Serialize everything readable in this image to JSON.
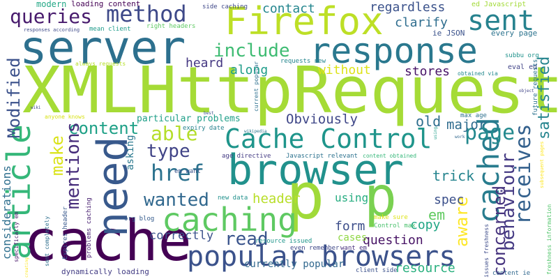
{
  "words": [
    {
      "text": "XMLHttpRequest",
      "color": "#a5db36",
      "rotate": 0
    },
    {
      "text": "browser",
      "color": "#21918c",
      "rotate": 0
    },
    {
      "text": "p",
      "color": "#a0da39",
      "rotate": 0
    },
    {
      "text": "p",
      "color": "#7ad151",
      "rotate": 0
    },
    {
      "text": "cache",
      "color": "#440154",
      "rotate": 0
    },
    {
      "text": "server",
      "color": "#2d708e",
      "rotate": 0
    },
    {
      "text": "Firefox",
      "color": "#bddf26",
      "rotate": 0
    },
    {
      "text": "response",
      "color": "#2a788e",
      "rotate": 0
    },
    {
      "text": "need",
      "color": "#38598c",
      "rotate": -90
    },
    {
      "text": "Cache Control",
      "color": "#1f958b",
      "rotate": 0
    },
    {
      "text": "popular browsers",
      "color": "#3b528b",
      "rotate": 0
    },
    {
      "text": "caching",
      "color": "#5ec962",
      "rotate": 0
    },
    {
      "text": "article",
      "color": "#35b779",
      "rotate": -90
    },
    {
      "text": "cached",
      "color": "#287c8e",
      "rotate": -90
    },
    {
      "text": "method",
      "color": "#3e4989",
      "rotate": 0
    },
    {
      "text": "sent",
      "color": "#26828e",
      "rotate": 0
    },
    {
      "text": "queries",
      "color": "#481b6d",
      "rotate": 0
    },
    {
      "text": "include",
      "color": "#3fbc73",
      "rotate": 0
    },
    {
      "text": "href",
      "color": "#2c728e",
      "rotate": 0
    },
    {
      "text": "able",
      "color": "#b5de2b",
      "rotate": 0
    },
    {
      "text": "content",
      "color": "#1fa187",
      "rotate": 0
    },
    {
      "text": "type",
      "color": "#414487",
      "rotate": 0
    },
    {
      "text": "wanted",
      "color": "#31688e",
      "rotate": 0
    },
    {
      "text": "read",
      "color": "#3a548c",
      "rotate": 0
    },
    {
      "text": "page",
      "color": "#23898e",
      "rotate": 0
    },
    {
      "text": "receives",
      "color": "#34618d",
      "rotate": -90
    },
    {
      "text": "behaviour",
      "color": "#443983",
      "rotate": -90
    },
    {
      "text": "Modified",
      "color": "#3b518b",
      "rotate": -90
    },
    {
      "text": "make",
      "color": "#dae319",
      "rotate": -90
    },
    {
      "text": "mentions",
      "color": "#472d7b",
      "rotate": -90
    },
    {
      "text": "aware",
      "color": "#fde725",
      "rotate": -90
    },
    {
      "text": "concerned",
      "color": "#46337e",
      "rotate": -90
    },
    {
      "text": "satisfied",
      "color": "#25848e",
      "rotate": -90
    },
    {
      "text": "considerations",
      "color": "#2e6f8e",
      "rotate": -90
    },
    {
      "text": "Obviously",
      "color": "#3f4788",
      "rotate": 0
    },
    {
      "text": "contact",
      "color": "#24868e",
      "rotate": 0
    },
    {
      "text": "regardless",
      "color": "#3b528b",
      "rotate": 0
    },
    {
      "text": "clarify",
      "color": "#2e6d8e",
      "rotate": 0
    },
    {
      "text": "heard",
      "color": "#453882",
      "rotate": 0
    },
    {
      "text": "along",
      "color": "#1e9c89",
      "rotate": 0
    },
    {
      "text": "without",
      "color": "#dde318",
      "rotate": 0
    },
    {
      "text": "stores",
      "color": "#481467",
      "rotate": 0
    },
    {
      "text": "old",
      "color": "#2e6e8e",
      "rotate": 0
    },
    {
      "text": "major",
      "color": "#2f6c8e",
      "rotate": 0
    },
    {
      "text": "trick",
      "color": "#25848e",
      "rotate": 0
    },
    {
      "text": "header",
      "color": "#b8de29",
      "rotate": 0
    },
    {
      "text": "using",
      "color": "#27ad81",
      "rotate": 0
    },
    {
      "text": "spec",
      "color": "#3c508b",
      "rotate": 0
    },
    {
      "text": "form",
      "color": "#3d4e8a",
      "rotate": 0
    },
    {
      "text": "copy",
      "color": "#21a685",
      "rotate": 0
    },
    {
      "text": "em",
      "color": "#60ca60",
      "rotate": 0
    },
    {
      "text": "correctly",
      "color": "#3b528b",
      "rotate": 0
    },
    {
      "text": "question",
      "color": "#471365",
      "rotate": 0
    },
    {
      "text": "cases",
      "color": "#8fd744",
      "rotate": 0
    },
    {
      "text": "resource",
      "color": "#2ab07f",
      "rotate": 0
    },
    {
      "text": "asking",
      "color": "#2a788e",
      "rotate": -90
    },
    {
      "text": "currently popular",
      "color": "#31688e",
      "rotate": 0
    },
    {
      "text": "dynamically loading",
      "color": "#433d84",
      "rotate": 0
    },
    {
      "text": "particular problems",
      "color": "#1f9f88",
      "rotate": 0
    },
    {
      "text": "modern",
      "color": "#22a785",
      "rotate": 0
    },
    {
      "text": "loading content",
      "color": "#440154",
      "rotate": 0
    },
    {
      "text": "side caching",
      "color": "#3f4889",
      "rotate": 0
    },
    {
      "text": "ed Javascript",
      "color": "#a2da37",
      "rotate": 0
    },
    {
      "text": "ie JSON",
      "color": "#3b528b",
      "rotate": 0
    },
    {
      "text": "every page",
      "color": "#2c738e",
      "rotate": 0
    },
    {
      "text": "subbu org",
      "color": "#20928c",
      "rotate": 0
    },
    {
      "text": "eval ed",
      "color": "#414487",
      "rotate": 0
    },
    {
      "text": "requests new",
      "color": "#24868e",
      "rotate": 0
    },
    {
      "text": "obtained via",
      "color": "#23898e",
      "rotate": 0
    },
    {
      "text": "right headers",
      "color": "#5ec962",
      "rotate": 0
    },
    {
      "text": "mean client",
      "color": "#1e9b8a",
      "rotate": 0
    },
    {
      "text": "always requests",
      "color": "#b5de2b",
      "rotate": 0
    },
    {
      "text": "responses according",
      "color": "#3e4a89",
      "rotate": 0
    },
    {
      "text": "max age",
      "color": "#2d708e",
      "rotate": 0
    },
    {
      "text": "expiry date",
      "color": "#26828e",
      "rotate": 0
    },
    {
      "text": "age directive",
      "color": "#443b84",
      "rotate": 0
    },
    {
      "text": "Javascript relevant",
      "color": "#2c728e",
      "rotate": 0
    },
    {
      "text": "content obtained",
      "color": "#35b779",
      "rotate": 0
    },
    {
      "text": "em want",
      "color": "#3a548c",
      "rotate": 0
    },
    {
      "text": "new data",
      "color": "#21918c",
      "rotate": 0
    },
    {
      "text": "org blog",
      "color": "#365c8d",
      "rotate": 0
    },
    {
      "text": "problems caching",
      "color": "#482071",
      "rotate": -90
    },
    {
      "text": "Expires header",
      "color": "#38588c",
      "rotate": -90
    },
    {
      "text": "sent completely",
      "color": "#2e6f8e",
      "rotate": -90
    },
    {
      "text": "specifically em",
      "color": "#481769",
      "rotate": -90
    },
    {
      "text": "resource issued",
      "color": "#1f958b",
      "rotate": 0
    },
    {
      "text": "even remember",
      "color": "#3f4889",
      "rotate": 0
    },
    {
      "text": "want em",
      "color": "#472f7d",
      "rotate": 0
    },
    {
      "text": "make sure",
      "color": "#dde318",
      "rotate": 0
    },
    {
      "text": "Control max",
      "color": "#4ac16d",
      "rotate": 0
    },
    {
      "text": "client side",
      "color": "#3b518b",
      "rotate": 0
    },
    {
      "text": "content ie",
      "color": "#31688e",
      "rotate": 0
    },
    {
      "text": "issues freshness",
      "color": "#3e4c8a",
      "rotate": -90
    },
    {
      "text": "current popular",
      "color": "#2d708e",
      "rotate": -90
    },
    {
      "text": "future requests",
      "color": "#2c728e",
      "rotate": -90
    },
    {
      "text": "freshness information",
      "color": "#50c46a",
      "rotate": -90
    },
    {
      "text": "subsequent pages",
      "color": "#fde725",
      "rotate": -90
    },
    {
      "text": "anyone knows",
      "color": "#d8e219",
      "rotate": 0
    },
    {
      "text": "wikipedia",
      "color": "#2a788e",
      "rotate": 0
    },
    {
      "text": "best",
      "color": "#3b528b",
      "rotate": 0
    },
    {
      "text": "wiki",
      "color": "#3e4a89",
      "rotate": 0
    },
    {
      "text": "work",
      "color": "#31688e",
      "rotate": 0
    },
    {
      "text": "object",
      "color": "#414487",
      "rotate": 0
    },
    {
      "text": "p",
      "color": "#2c728e",
      "rotate": 0
    },
    {
      "text": "creating",
      "color": "#fde725",
      "rotate": -90
    },
    {
      "text": "using",
      "color": "#1f9e89",
      "rotate": -90
    }
  ]
}
